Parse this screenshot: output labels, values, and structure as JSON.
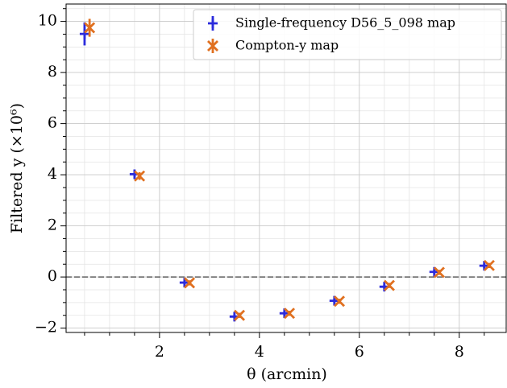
{
  "chart_data": {
    "type": "errorbar",
    "xlabel": "θ (arcmin)",
    "ylabel": "Filtered y (×10⁶)",
    "xlim": [
      0.13,
      8.94
    ],
    "ylim": [
      -2.17,
      10.68
    ],
    "xticks": [
      2,
      4,
      6,
      8
    ],
    "yticks": [
      {
        "value": -2,
        "label": "−2"
      },
      0,
      2,
      4,
      6,
      8,
      10
    ],
    "xminorticks": [
      0.5,
      1,
      1.5,
      2.5,
      3,
      3.5,
      4.5,
      5,
      5.5,
      6.5,
      7,
      7.5,
      8.5
    ],
    "yminorticks": [
      -1.5,
      -1,
      -0.5,
      0.5,
      1,
      1.5,
      2.5,
      3,
      3.5,
      4.5,
      5,
      5.5,
      6.5,
      7,
      7.5,
      8.5,
      9,
      9.5,
      10.5
    ],
    "grid": true,
    "hline": 0,
    "legend": "upper right",
    "series": [
      {
        "name": "Single-frequency D56_5_098 map",
        "color": "#2b2bdc",
        "marker": "+",
        "x": [
          0.5,
          1.5,
          2.5,
          3.5,
          4.5,
          5.5,
          6.5,
          7.5,
          8.5
        ],
        "values": [
          9.51,
          4.02,
          -0.22,
          -1.55,
          -1.42,
          -0.93,
          -0.38,
          0.2,
          0.44
        ],
        "errors": [
          0.45,
          0.15,
          0.08,
          0.08,
          0.08,
          0.08,
          0.08,
          0.08,
          0.08
        ]
      },
      {
        "name": "Compton-y map",
        "color": "#e07020",
        "marker": "x",
        "x": [
          0.6,
          1.6,
          2.6,
          3.6,
          4.6,
          5.6,
          6.6,
          7.6,
          8.6
        ],
        "values": [
          9.75,
          3.95,
          -0.23,
          -1.5,
          -1.42,
          -0.95,
          -0.33,
          0.18,
          0.45
        ],
        "errors": [
          0.35,
          0.15,
          0.1,
          0.1,
          0.1,
          0.1,
          0.1,
          0.1,
          0.1
        ]
      }
    ]
  }
}
